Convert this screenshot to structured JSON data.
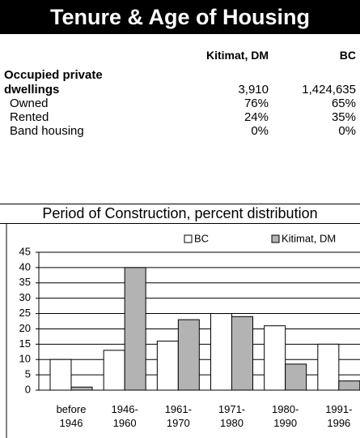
{
  "header": {
    "title": "Tenure & Age of Housing"
  },
  "table": {
    "columns": [
      "Kitimat, DM",
      "BC"
    ],
    "rows": [
      [
        "Occupied private\ndwellings",
        "3,910",
        "1,424,635"
      ],
      [
        "Owned",
        "76%",
        "65%"
      ],
      [
        "Rented",
        "24%",
        "35%"
      ],
      [
        "Band housing",
        "0%",
        "0%"
      ]
    ]
  },
  "chart_data": {
    "type": "bar",
    "title": "Period of Construction, percent distribution",
    "categories": [
      "before\n1946",
      "1946-\n1960",
      "1961-\n1970",
      "1971-\n1980",
      "1980-\n1990",
      "1991-\n1996"
    ],
    "series": [
      {
        "name": "BC",
        "color": "#ffffff",
        "values": [
          10,
          13,
          16,
          25,
          21,
          15
        ]
      },
      {
        "name": "Kitimat, DM",
        "color": "#b3b3b3",
        "values": [
          1,
          40,
          23,
          24,
          8.5,
          3
        ]
      }
    ],
    "ylim": [
      0,
      45
    ],
    "yticks": [
      0,
      5,
      10,
      15,
      20,
      25,
      30,
      35,
      40,
      45
    ],
    "grid": true,
    "legend": "top"
  }
}
